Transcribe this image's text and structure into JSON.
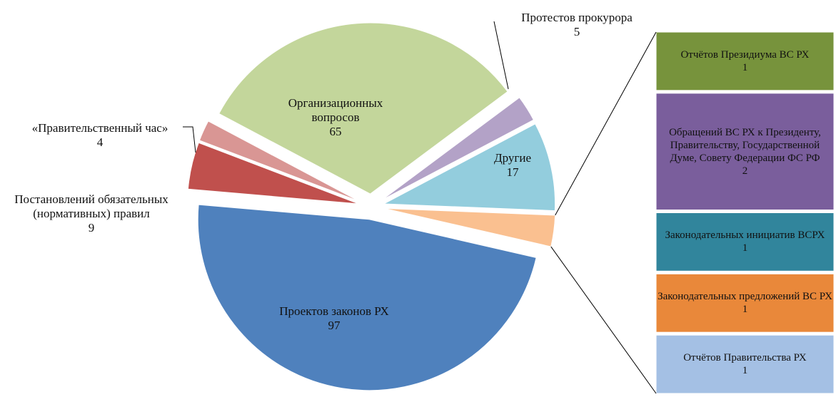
{
  "chart_data": {
    "type": "pie_of_bar",
    "categories": [
      "Организационных вопросов",
      "Протестов прокурора",
      "Другие",
      null,
      "Проектов законов РХ",
      "Постановлений обязательных (нормативных) правил",
      "«Правительственный час»"
    ],
    "values": [
      65,
      5,
      17,
      6,
      97,
      9,
      4
    ],
    "colors": [
      "#c3d69b",
      "#b3a2c7",
      "#93cddd",
      "#fac090",
      "#4f81bd",
      "#c0504d",
      "#d99694"
    ],
    "bar": {
      "categories": [
        "Отчётов Президиума ВС РХ",
        "Обращений ВС РХ к Президенту, Правительству, Государственной Думе, Совету Федерации ФС РФ",
        "Законодательных инициатив ВСРХ",
        "Законодательных предложений ВС РХ",
        "Отчётов Правительства РХ"
      ],
      "values": [
        1,
        2,
        1,
        1,
        1
      ],
      "colors": [
        "#77933c",
        "#7a5e9c",
        "#31859c",
        "#e9883a",
        "#a4c0e4"
      ]
    }
  }
}
